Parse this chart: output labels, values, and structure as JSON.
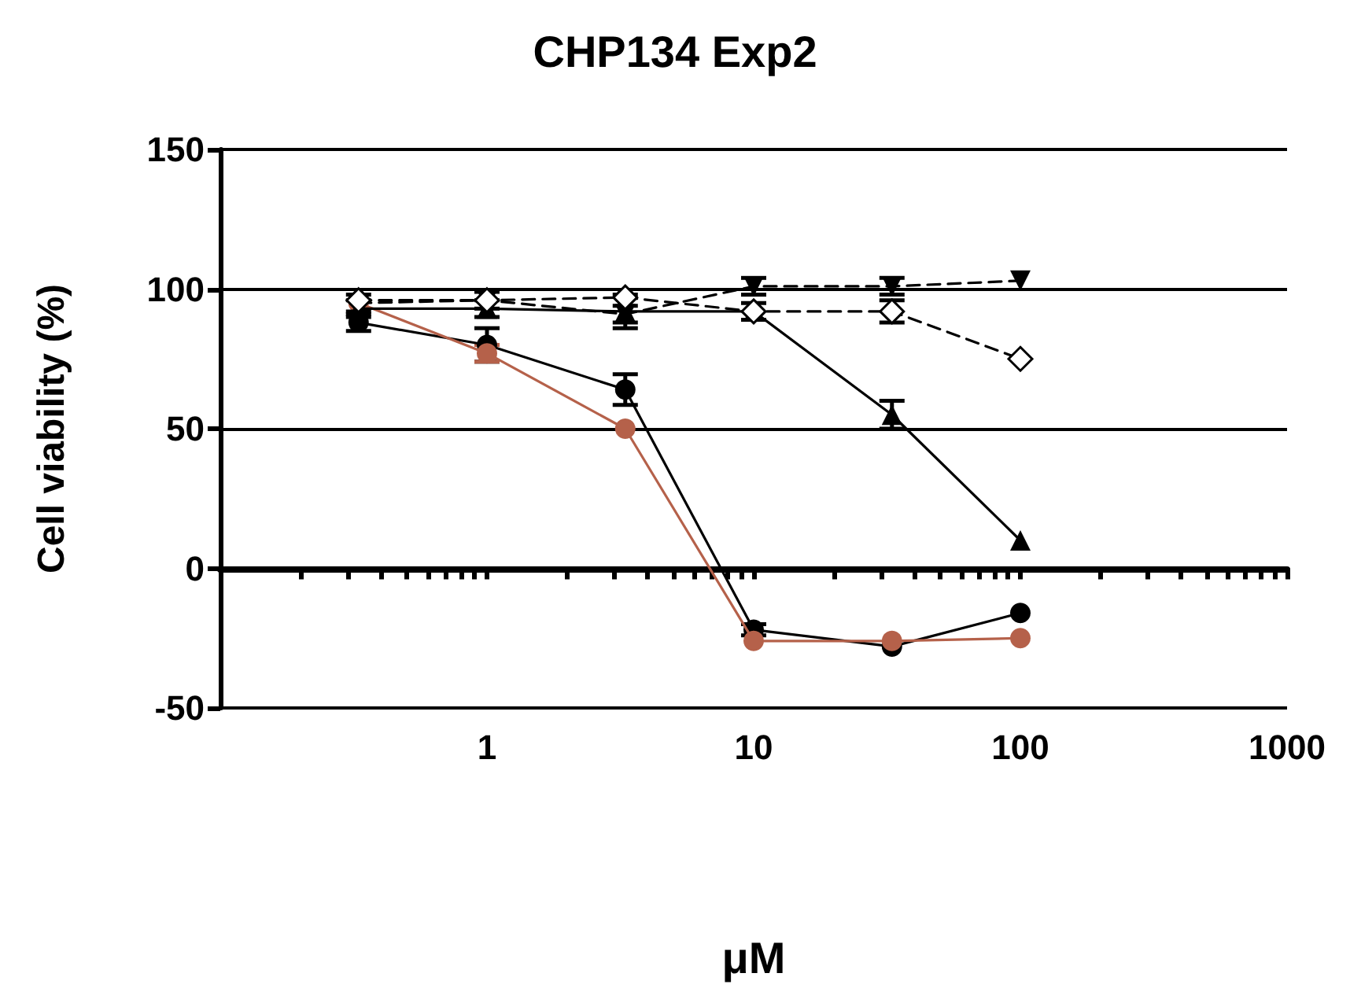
{
  "chart_data": {
    "type": "line",
    "title": "CHP134 Exp2",
    "xlabel": "μM",
    "ylabel": "Cell viability (%)",
    "log": "x",
    "grid": "y",
    "x": [
      0.33,
      1,
      3.3,
      10,
      33,
      100
    ],
    "xlim": [
      0.1,
      1000
    ],
    "xticks": [
      {
        "value": 0.2,
        "label": null
      },
      {
        "value": 0.3,
        "label": null
      },
      {
        "value": 0.4,
        "label": null
      },
      {
        "value": 0.5,
        "label": null
      },
      {
        "value": 0.6,
        "label": null
      },
      {
        "value": 0.7,
        "label": null
      },
      {
        "value": 0.8,
        "label": null
      },
      {
        "value": 0.9,
        "label": null
      },
      1,
      {
        "value": 2,
        "label": null
      },
      {
        "value": 3,
        "label": null
      },
      {
        "value": 4,
        "label": null
      },
      {
        "value": 5,
        "label": null
      },
      {
        "value": 6,
        "label": null
      },
      {
        "value": 7,
        "label": null
      },
      {
        "value": 8,
        "label": null
      },
      {
        "value": 9,
        "label": null
      },
      10,
      {
        "value": 20,
        "label": null
      },
      {
        "value": 30,
        "label": null
      },
      {
        "value": 40,
        "label": null
      },
      {
        "value": 50,
        "label": null
      },
      {
        "value": 60,
        "label": null
      },
      {
        "value": 70,
        "label": null
      },
      {
        "value": 80,
        "label": null
      },
      {
        "value": 90,
        "label": null
      },
      100,
      {
        "value": 200,
        "label": null
      },
      {
        "value": 300,
        "label": null
      },
      {
        "value": 400,
        "label": null
      },
      {
        "value": 500,
        "label": null
      },
      {
        "value": 600,
        "label": null
      },
      {
        "value": 700,
        "label": null
      },
      {
        "value": 800,
        "label": null
      },
      {
        "value": 900,
        "label": null
      },
      1000
    ],
    "ylim": [
      -50,
      150
    ],
    "yticks": [
      -50,
      0,
      50,
      100,
      150
    ],
    "series": [
      {
        "color": "#000000",
        "marker": "circle",
        "line_style": "solid",
        "values": [
          88,
          80,
          64,
          -22,
          -28,
          -16
        ],
        "errors": [
          3,
          6,
          5.5,
          2,
          null,
          null
        ]
      },
      {
        "color": "#b5614a",
        "marker": "circle",
        "line_style": "solid",
        "values": [
          95,
          77,
          50,
          -26,
          -26,
          -25
        ],
        "errors": [
          null,
          3,
          null,
          null,
          null,
          null
        ]
      },
      {
        "color": "#000000",
        "marker": "triangle",
        "line_style": "solid",
        "values": [
          93,
          93,
          92,
          92,
          55,
          10
        ],
        "errors": [
          3,
          3,
          6,
          3,
          5,
          null
        ]
      },
      {
        "color": "#000000",
        "marker": "triangle-down",
        "line_style": "dashed",
        "values": [
          95,
          96,
          91,
          101,
          101,
          103
        ],
        "errors": [
          3,
          3,
          3,
          3,
          3,
          null
        ]
      },
      {
        "color": "#000000",
        "marker": "diamond-open",
        "line_style": "dashed",
        "values": [
          96,
          96,
          97,
          92,
          92,
          75
        ],
        "errors": [
          null,
          null,
          null,
          null,
          4,
          null
        ]
      }
    ]
  }
}
